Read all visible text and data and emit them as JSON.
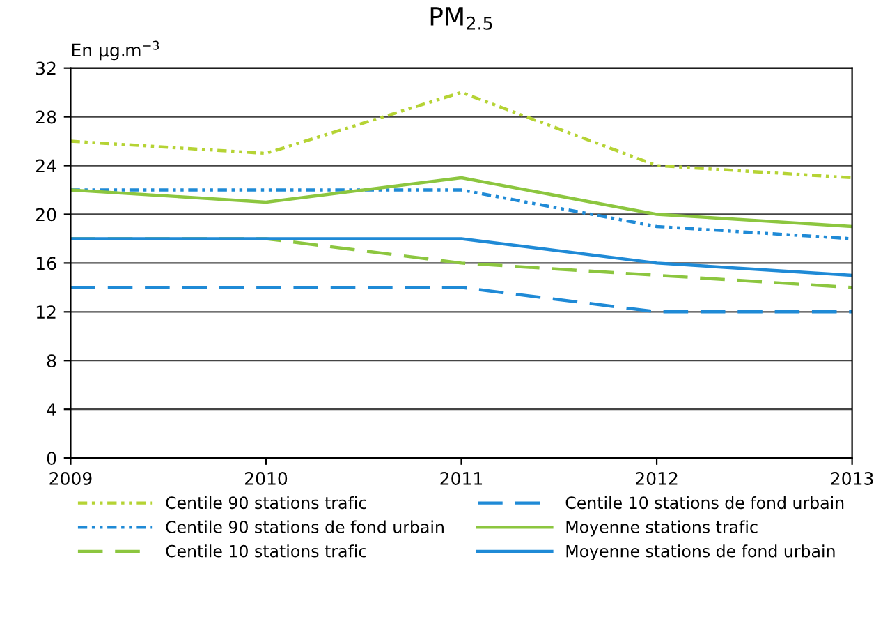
{
  "chart_data": {
    "type": "line",
    "title": "PM$_{2.5}$",
    "ylabel": "En µg.m$^{−3}$",
    "x": [
      2009,
      2010,
      2011,
      2012,
      2013
    ],
    "xlim": [
      2009,
      2013
    ],
    "xticks": [
      2009,
      2010,
      2011,
      2012,
      2013
    ],
    "ylim": [
      0,
      32
    ],
    "yticks": [
      0,
      4,
      8,
      12,
      16,
      20,
      24,
      28,
      32
    ],
    "grid": "y",
    "legend": "bottom",
    "marker": "none",
    "series": [
      {
        "name": "Centile 90 stations trafic",
        "color": "#b5d334",
        "line_style": "dotted",
        "values": [
          26,
          25,
          30,
          24,
          23
        ]
      },
      {
        "name": "Centile 90 stations de fond urbain",
        "color": "#1f8ad6",
        "line_style": "dotted",
        "values": [
          22,
          22,
          22,
          19,
          18
        ]
      },
      {
        "name": "Centile 10 stations trafic",
        "color": "#8cc63f",
        "line_style": "dashed",
        "values": [
          18,
          18,
          16,
          15,
          14
        ]
      },
      {
        "name": "Centile 10 stations de fond urbain",
        "color": "#1f8ad6",
        "line_style": "dashed",
        "values": [
          14,
          14,
          14,
          12,
          12
        ]
      },
      {
        "name": "Moyenne stations trafic",
        "color": "#8cc63f",
        "line_style": "solid",
        "values": [
          22,
          21,
          23,
          20,
          19
        ]
      },
      {
        "name": "Moyenne stations de fond urbain",
        "color": "#1f8ad6",
        "line_style": "solid",
        "values": [
          18,
          18,
          18,
          16,
          15
        ]
      }
    ]
  }
}
